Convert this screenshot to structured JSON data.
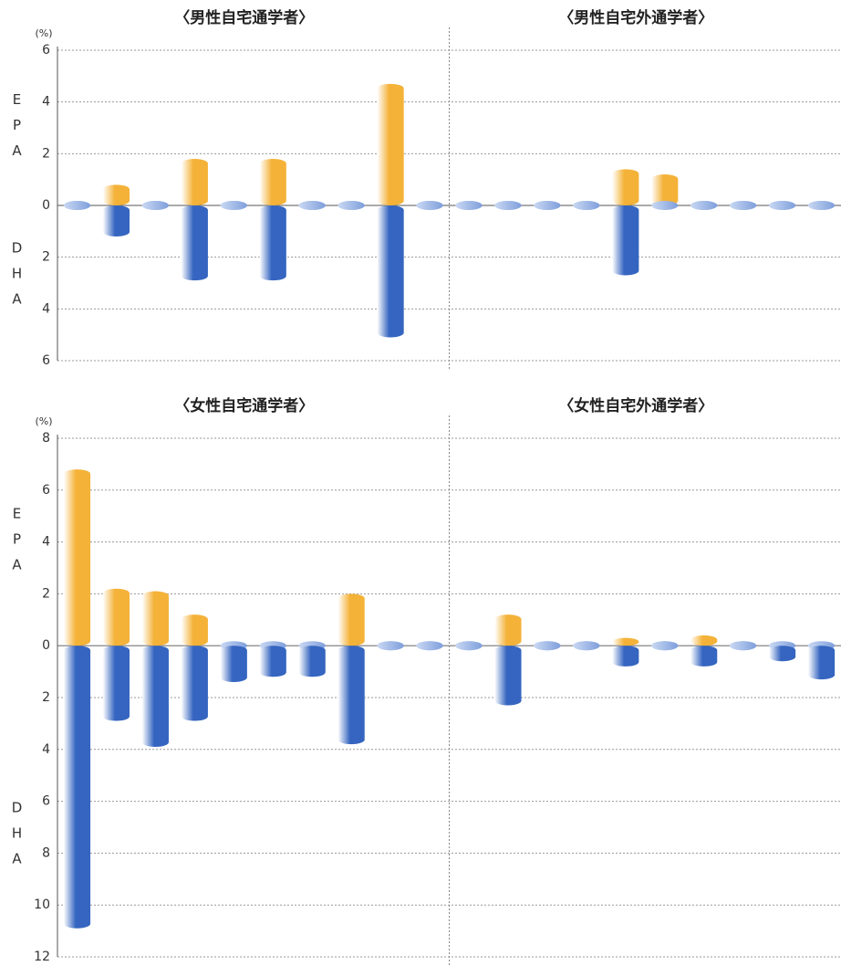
{
  "chart_data": [
    {
      "type": "bar",
      "titles": [
        "〈男性自宅通学者〉",
        "〈男性自宅外通学者〉"
      ],
      "ylabel": "(%)",
      "categories": [
        null,
        null,
        null,
        null,
        null,
        null,
        null,
        null,
        null,
        null,
        null,
        null,
        null,
        null,
        null,
        null,
        null,
        null,
        null,
        null
      ],
      "series": [
        {
          "name": "EPA",
          "color": "#f4b238",
          "values": [
            0,
            0.8,
            0,
            1.8,
            0,
            1.8,
            0,
            0,
            4.7,
            0,
            0,
            0,
            0,
            0,
            1.4,
            1.2,
            0,
            0,
            0,
            0
          ]
        },
        {
          "name": "DHA",
          "color": "#3565c0",
          "values": [
            0,
            -1.2,
            0,
            -2.9,
            0,
            -2.9,
            0,
            0,
            -5.1,
            0,
            0,
            0,
            0,
            0,
            -2.7,
            0,
            0,
            0,
            0,
            0
          ]
        }
      ],
      "ylim": [
        -6,
        6
      ],
      "yticks": [
        {
          "value": -6,
          "label": "6"
        },
        {
          "value": -4,
          "label": "4"
        },
        {
          "value": -2,
          "label": "2"
        },
        0,
        2,
        4,
        6
      ],
      "grid": true
    },
    {
      "type": "bar",
      "titles": [
        "〈女性自宅通学者〉",
        "〈女性自宅外通学者〉"
      ],
      "ylabel": "(%)",
      "categories": [
        null,
        null,
        null,
        null,
        null,
        null,
        null,
        null,
        null,
        null,
        null,
        null,
        null,
        null,
        null,
        null,
        null,
        null,
        null,
        null
      ],
      "series": [
        {
          "name": "EPA",
          "color": "#f4b238",
          "values": [
            6.8,
            2.2,
            2.1,
            1.2,
            0,
            0,
            0,
            2.0,
            0,
            0,
            0,
            1.2,
            0,
            0,
            0.3,
            0,
            0.4,
            0,
            0,
            0
          ]
        },
        {
          "name": "DHA",
          "color": "#3565c0",
          "values": [
            -10.9,
            -2.9,
            -3.9,
            -2.9,
            -1.4,
            -1.2,
            -1.2,
            -3.8,
            0,
            0,
            0,
            -2.3,
            0,
            0,
            -0.8,
            0,
            -0.8,
            0,
            -0.6,
            -1.3
          ]
        }
      ],
      "ylim": [
        -12,
        8
      ],
      "yticks": [
        {
          "value": -12,
          "label": "12"
        },
        {
          "value": -10,
          "label": "10"
        },
        {
          "value": -8,
          "label": "8"
        },
        {
          "value": -6,
          "label": "6"
        },
        {
          "value": -4,
          "label": "4"
        },
        {
          "value": -2,
          "label": "2"
        },
        0,
        2,
        4,
        6,
        8
      ],
      "grid": true
    }
  ]
}
